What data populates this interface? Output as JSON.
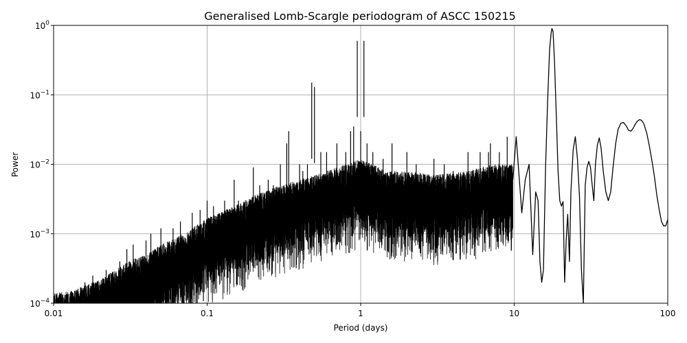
{
  "chart_data": {
    "type": "line",
    "title": "Generalised Lomb-Scargle periodogram of ASCC 150215",
    "xlabel": "Period (days)",
    "ylabel": "Power",
    "xscale": "log",
    "yscale": "log",
    "xlim": [
      0.01,
      100
    ],
    "ylim": [
      0.0001,
      1
    ],
    "grid": true,
    "line_color": "#000000",
    "grid_color": "#b0b0b0",
    "x_ticks": [
      {
        "value": 0.01,
        "label": "0.01"
      },
      {
        "value": 0.1,
        "label": "0.1"
      },
      {
        "value": 1,
        "label": "1"
      },
      {
        "value": 10,
        "label": "10"
      },
      {
        "value": 100,
        "label": "100"
      }
    ],
    "y_ticks": [
      {
        "value": 0.0001,
        "base": "10",
        "exp": "−4"
      },
      {
        "value": 0.001,
        "base": "10",
        "exp": "−3"
      },
      {
        "value": 0.01,
        "base": "10",
        "exp": "−2"
      },
      {
        "value": 0.1,
        "base": "10",
        "exp": "−1"
      },
      {
        "value": 1,
        "base": "10",
        "exp": "0"
      }
    ],
    "series": [
      {
        "x": [
          9.8,
          10.3,
          11.2,
          11.8,
          12.5,
          13.2,
          13.8,
          14.3,
          14.7,
          15.1,
          15.5,
          16.0,
          16.5,
          17.0,
          17.4,
          17.6,
          17.9,
          18.3,
          18.8,
          19.3,
          19.8,
          20.3,
          20.8,
          21.3,
          21.8,
          22.3,
          22.9,
          23.4,
          24.2,
          25.0,
          25.8,
          26.6,
          27.4,
          28.2,
          29.0,
          29.8,
          30.6,
          31.4,
          32.2,
          33.0,
          33.8,
          34.8,
          35.8,
          36.8,
          38.0,
          39.5,
          41.0,
          42.5,
          44.0,
          45.8,
          47.5,
          49.5,
          51.5,
          53.5,
          55.5,
          57.5,
          59.5,
          61.5,
          63.5,
          65.5,
          67.5,
          70.0,
          73.0,
          76.0,
          79.0,
          82.0,
          85.0,
          88.0,
          91.0,
          94.0,
          97.0,
          100.0
        ],
        "y": [
          0.006,
          0.025,
          0.002,
          0.006,
          0.01,
          0.0005,
          0.004,
          0.003,
          0.0004,
          0.0002,
          0.0003,
          0.009,
          0.08,
          0.45,
          0.78,
          0.9,
          0.82,
          0.3,
          0.05,
          0.008,
          0.003,
          0.0025,
          0.0029,
          0.0002,
          0.0008,
          0.0019,
          0.0004,
          0.004,
          0.016,
          0.025,
          0.012,
          0.0035,
          0.0003,
          0.0001,
          0.005,
          0.009,
          0.011,
          0.009,
          0.005,
          0.003,
          0.01,
          0.019,
          0.024,
          0.017,
          0.008,
          0.004,
          0.003,
          0.004,
          0.009,
          0.02,
          0.032,
          0.039,
          0.04,
          0.036,
          0.031,
          0.03,
          0.033,
          0.038,
          0.042,
          0.044,
          0.043,
          0.038,
          0.028,
          0.018,
          0.011,
          0.0065,
          0.0035,
          0.0022,
          0.0015,
          0.0013,
          0.0013,
          0.0016
        ]
      }
    ],
    "dense_region": {
      "x_range": [
        0.01,
        9.8
      ],
      "upper_envelope": [
        [
          0.01,
          0.00014
        ],
        [
          0.013,
          0.00015
        ],
        [
          0.016,
          0.00018
        ],
        [
          0.02,
          0.00022
        ],
        [
          0.025,
          0.0003
        ],
        [
          0.03,
          0.0004
        ],
        [
          0.04,
          0.0005
        ],
        [
          0.05,
          0.0007
        ],
        [
          0.07,
          0.001
        ],
        [
          0.1,
          0.0017
        ],
        [
          0.15,
          0.0025
        ],
        [
          0.2,
          0.0035
        ],
        [
          0.3,
          0.005
        ],
        [
          0.5,
          0.007
        ],
        [
          0.8,
          0.01
        ],
        [
          1.0,
          0.012
        ],
        [
          1.5,
          0.008
        ],
        [
          2.0,
          0.008
        ],
        [
          3.0,
          0.007
        ],
        [
          5.0,
          0.008
        ],
        [
          7.0,
          0.01
        ],
        [
          9.8,
          0.01
        ]
      ],
      "peaks": [
        [
          0.013,
          0.00015
        ],
        [
          0.016,
          0.0002
        ],
        [
          0.018,
          0.00025
        ],
        [
          0.022,
          0.0003
        ],
        [
          0.027,
          0.0004
        ],
        [
          0.03,
          0.0006
        ],
        [
          0.033,
          0.0007
        ],
        [
          0.04,
          0.0008
        ],
        [
          0.043,
          0.001
        ],
        [
          0.05,
          0.0012
        ],
        [
          0.06,
          0.0012
        ],
        [
          0.067,
          0.0015
        ],
        [
          0.08,
          0.002
        ],
        [
          0.09,
          0.0022
        ],
        [
          0.1,
          0.003
        ],
        [
          0.11,
          0.0025
        ],
        [
          0.13,
          0.003
        ],
        [
          0.15,
          0.006
        ],
        [
          0.16,
          0.003
        ],
        [
          0.2,
          0.009
        ],
        [
          0.22,
          0.005
        ],
        [
          0.25,
          0.006
        ],
        [
          0.27,
          0.005
        ],
        [
          0.3,
          0.01
        ],
        [
          0.33,
          0.02
        ],
        [
          0.34,
          0.03
        ],
        [
          0.38,
          0.004
        ],
        [
          0.4,
          0.01
        ],
        [
          0.42,
          0.008
        ],
        [
          0.45,
          0.01
        ],
        [
          0.48,
          0.15
        ],
        [
          0.5,
          0.13
        ],
        [
          0.55,
          0.015
        ],
        [
          0.6,
          0.015
        ],
        [
          0.7,
          0.02
        ],
        [
          0.8,
          0.015
        ],
        [
          0.86,
          0.03
        ],
        [
          0.9,
          0.035
        ],
        [
          0.95,
          0.6
        ],
        [
          1.0,
          0.03
        ],
        [
          1.05,
          0.6
        ],
        [
          1.1,
          0.02
        ],
        [
          1.2,
          0.015
        ],
        [
          1.4,
          0.012
        ],
        [
          1.6,
          0.02
        ],
        [
          2.0,
          0.015
        ],
        [
          2.3,
          0.01
        ],
        [
          3.0,
          0.012
        ],
        [
          3.5,
          0.01
        ],
        [
          4.0,
          0.008
        ],
        [
          5.0,
          0.015
        ],
        [
          5.5,
          0.006
        ],
        [
          6.0,
          0.015
        ],
        [
          6.8,
          0.015
        ],
        [
          7.0,
          0.02
        ],
        [
          8.0,
          0.015
        ],
        [
          9.0,
          0.025
        ]
      ]
    }
  }
}
